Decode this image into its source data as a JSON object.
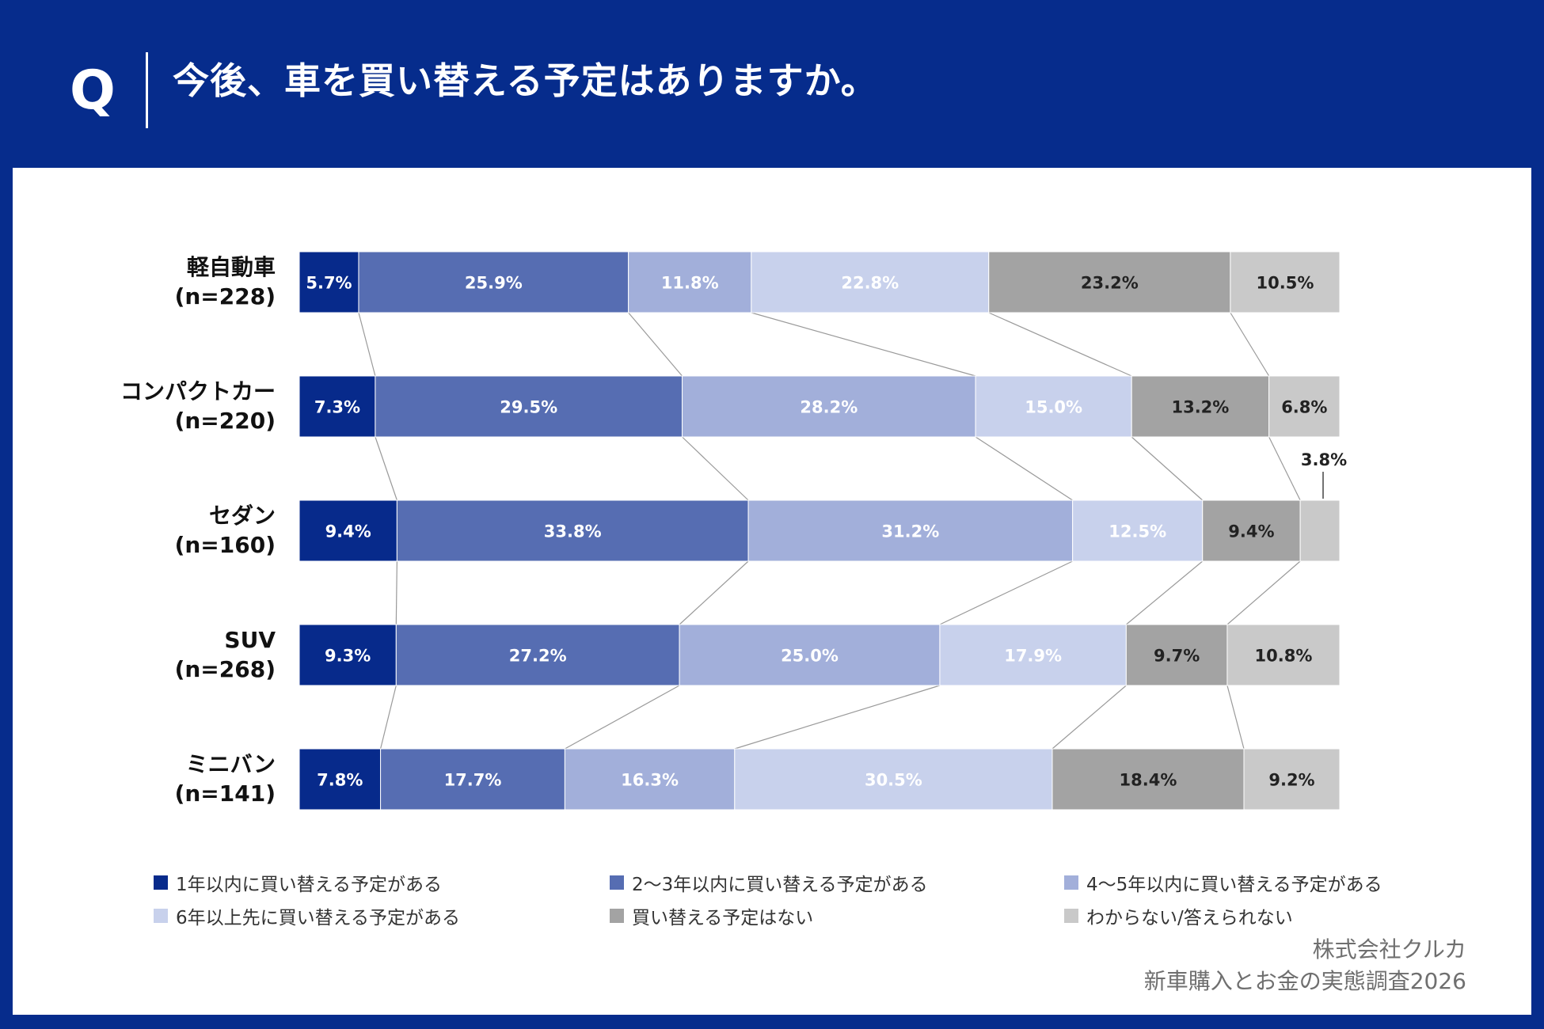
{
  "header": {
    "q_label": "Q",
    "question": "今後、車を買い替える予定はありますか。"
  },
  "credit": {
    "company": "株式会社クルカ",
    "survey": "新車購入とお金の実態調査2026"
  },
  "colors": {
    "header_bg": "#062c8c",
    "panel_bg": "#ffffff",
    "connector": "#9a9a9a"
  },
  "chart_data": {
    "type": "bar",
    "orientation": "horizontal",
    "stacked": "100%",
    "categories": [
      {
        "name": "軽自動車",
        "n": "(n=228)"
      },
      {
        "name": "コンパクトカー",
        "n": "(n=220)"
      },
      {
        "name": "セダン",
        "n": "(n=160)"
      },
      {
        "name": "SUV",
        "n": "(n=268)"
      },
      {
        "name": "ミニバン",
        "n": "(n=141)"
      }
    ],
    "series": [
      {
        "name": "1年以内に買い替える予定がある",
        "color": "#072a8b",
        "label_color": "#ffffff",
        "values": [
          5.7,
          7.3,
          9.4,
          9.3,
          7.8
        ]
      },
      {
        "name": "2〜3年以内に買い替える予定がある",
        "color": "#566db2",
        "label_color": "#ffffff",
        "values": [
          25.9,
          29.5,
          33.8,
          27.2,
          17.7
        ]
      },
      {
        "name": "4〜5年以内に買い替える予定がある",
        "color": "#a2afda",
        "label_color": "#ffffff",
        "values": [
          11.8,
          28.2,
          31.2,
          25.0,
          16.3
        ]
      },
      {
        "name": "6年以上先に買い替える予定がある",
        "color": "#c8d1ec",
        "label_color": "#ffffff",
        "values": [
          22.8,
          15.0,
          12.5,
          17.9,
          30.5
        ]
      },
      {
        "name": "買い替える予定はない",
        "color": "#a3a3a3",
        "label_color": "#222222",
        "values": [
          23.2,
          13.2,
          9.4,
          9.7,
          18.4
        ]
      },
      {
        "name": "わからない/答えられない",
        "color": "#c9c9c9",
        "label_color": "#222222",
        "values": [
          10.5,
          6.8,
          3.8,
          10.8,
          9.2
        ]
      }
    ],
    "data_labels": [
      [
        "5.7%",
        "25.9%",
        "11.8%",
        "22.8%",
        "23.2%",
        "10.5%"
      ],
      [
        "7.3%",
        "29.5%",
        "28.2%",
        "15.0%",
        "13.2%",
        "6.8%"
      ],
      [
        "9.4%",
        "33.8%",
        "31.2%",
        "12.5%",
        "9.4%",
        "3.8%"
      ],
      [
        "9.3%",
        "27.2%",
        "25.0%",
        "17.9%",
        "9.7%",
        "10.8%"
      ],
      [
        "7.8%",
        "17.7%",
        "16.3%",
        "30.5%",
        "18.4%",
        "9.2%"
      ]
    ],
    "xlim": [
      0,
      100
    ],
    "connector_lines": true,
    "legend_position": "bottom"
  }
}
